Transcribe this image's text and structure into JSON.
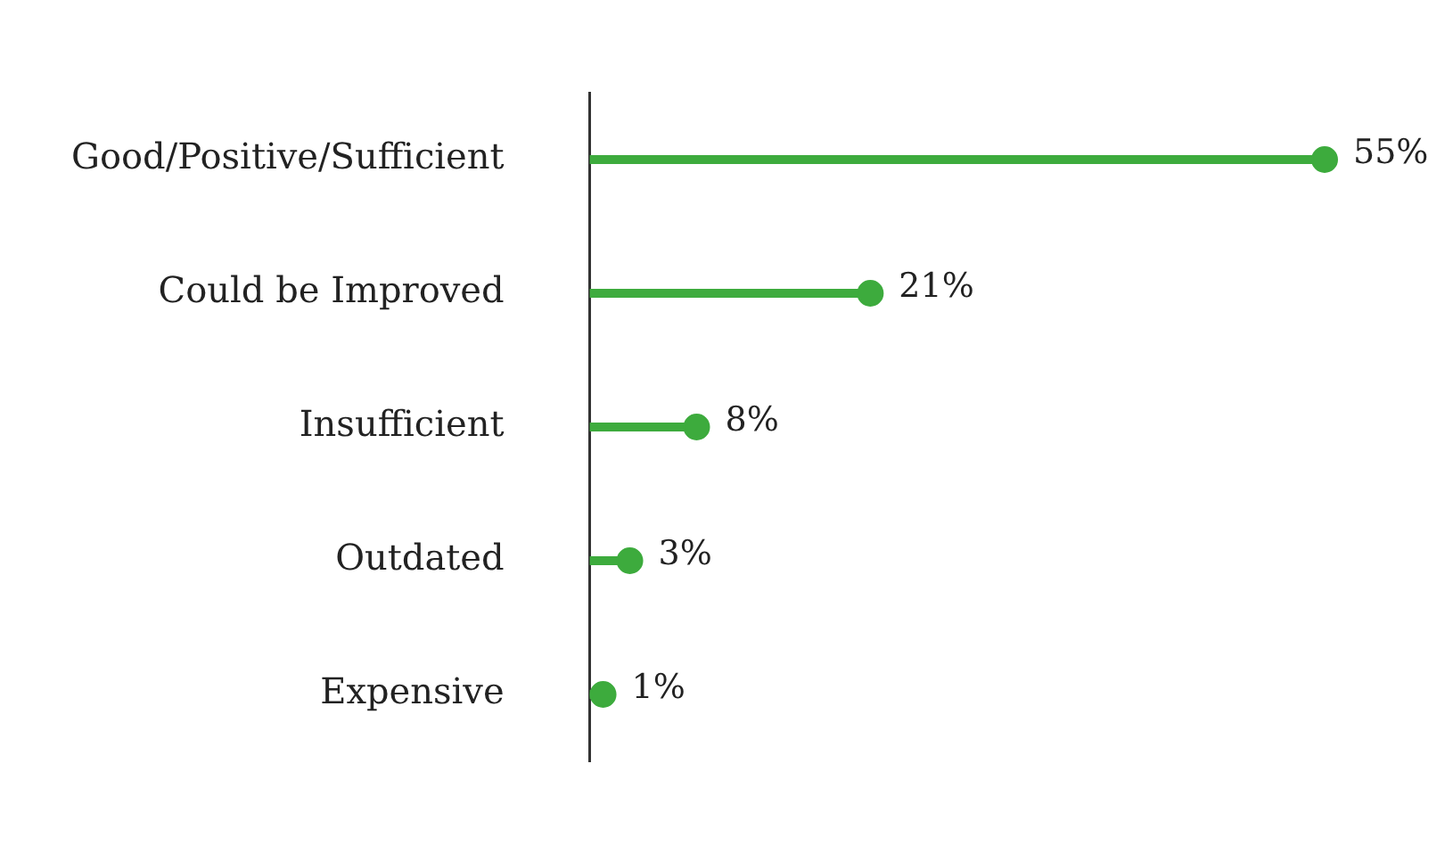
{
  "chart_data": {
    "type": "lollipop",
    "orientation": "horizontal",
    "categories": [
      "Good/Positive/Sufficient",
      "Could be Improved",
      "Insufficient",
      "Outdated",
      "Expensive"
    ],
    "values": [
      55,
      21,
      8,
      3,
      1
    ],
    "value_labels": [
      "55%",
      "21%",
      "8%",
      "3%",
      "1%"
    ],
    "color": "#3dab3d"
  }
}
